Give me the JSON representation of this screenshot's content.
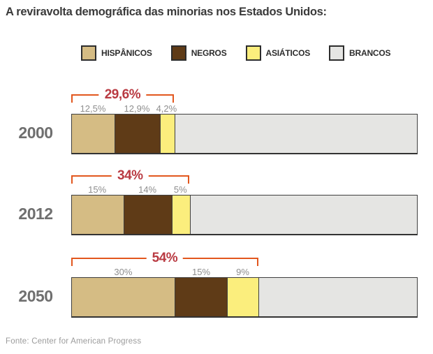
{
  "title": "A reviravolta demográfica das minorias nos Estados Unidos:",
  "source": "Fonte: Center for American Progress",
  "colors": {
    "hispanicos": "#d5bc84",
    "negros": "#5f3b17",
    "asiaticos": "#fbee7d",
    "brancos": "#e5e5e3",
    "bracket_line": "#e2571e",
    "bracket_text": "#b93a42",
    "bar_border": "#3f3f3f"
  },
  "legend": [
    {
      "label": "HISPÂNICOS",
      "color": "#d5bc84"
    },
    {
      "label": "NEGROS",
      "color": "#5f3b17"
    },
    {
      "label": "ASIÁTICOS",
      "color": "#fbee7d"
    },
    {
      "label": "BRANCOS",
      "color": "#e5e5e3"
    }
  ],
  "rows": [
    {
      "year": "2000",
      "total": {
        "label": "29,6%",
        "pct": 29.6
      },
      "segments": [
        {
          "key": "hispanicos",
          "label": "12,5%",
          "pct": 12.5,
          "color": "#d5bc84"
        },
        {
          "key": "negros",
          "label": "12,9%",
          "pct": 12.9,
          "color": "#5f3b17"
        },
        {
          "key": "asiaticos",
          "label": "4,2%",
          "pct": 4.2,
          "color": "#fbee7d"
        },
        {
          "key": "brancos",
          "label": "",
          "pct": 70.4,
          "color": "#e5e5e3"
        }
      ]
    },
    {
      "year": "2012",
      "total": {
        "label": "34%",
        "pct": 34
      },
      "segments": [
        {
          "key": "hispanicos",
          "label": "15%",
          "pct": 15,
          "color": "#d5bc84"
        },
        {
          "key": "negros",
          "label": "14%",
          "pct": 14,
          "color": "#5f3b17"
        },
        {
          "key": "asiaticos",
          "label": "5%",
          "pct": 5,
          "color": "#fbee7d"
        },
        {
          "key": "brancos",
          "label": "",
          "pct": 66,
          "color": "#e5e5e3"
        }
      ]
    },
    {
      "year": "2050",
      "total": {
        "label": "54%",
        "pct": 54
      },
      "segments": [
        {
          "key": "hispanicos",
          "label": "30%",
          "pct": 30,
          "color": "#d5bc84"
        },
        {
          "key": "negros",
          "label": "15%",
          "pct": 15,
          "color": "#5f3b17"
        },
        {
          "key": "asiaticos",
          "label": "9%",
          "pct": 9,
          "color": "#fbee7d"
        },
        {
          "key": "brancos",
          "label": "",
          "pct": 46,
          "color": "#e5e5e3"
        }
      ]
    }
  ],
  "chart_data": {
    "type": "bar",
    "orientation": "horizontal",
    "stacked": true,
    "title": "A reviravolta demográfica das minorias nos Estados Unidos:",
    "categories": [
      "2000",
      "2012",
      "2050"
    ],
    "series": [
      {
        "name": "Hispânicos",
        "values": [
          12.5,
          15,
          30
        ],
        "color": "#d5bc84"
      },
      {
        "name": "Negros",
        "values": [
          12.9,
          14,
          15
        ],
        "color": "#5f3b17"
      },
      {
        "name": "Asiáticos",
        "values": [
          4.2,
          5,
          9
        ],
        "color": "#fbee7d"
      },
      {
        "name": "Brancos",
        "values": [
          70.4,
          66,
          46
        ],
        "color": "#e5e5e3"
      }
    ],
    "minority_total_annotations": [
      29.6,
      34,
      54
    ],
    "xlim": [
      0,
      100
    ],
    "grid": false,
    "legend_position": "top",
    "source": "Fonte: Center for American Progress"
  }
}
